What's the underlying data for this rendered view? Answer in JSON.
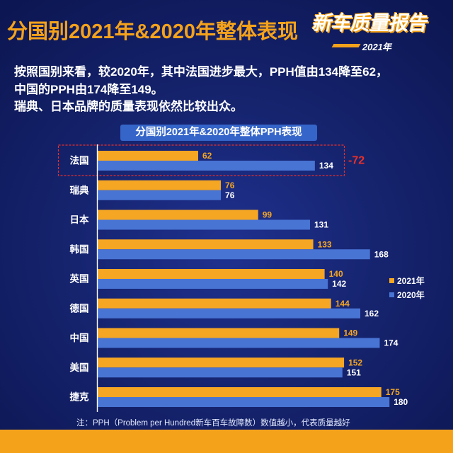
{
  "header": {
    "title": "分国别2021年&2020年整体表现"
  },
  "logo": {
    "text": "新车质量报告",
    "year": "2021年"
  },
  "intro": {
    "lines": [
      "按照国别来看，较2020年，其中法国进步最大，PPH值由134降至62，",
      "中国的PPH由174降至149。",
      "瑞典、日本品牌的质量表现依然比较出众。"
    ]
  },
  "chart_data": {
    "type": "bar",
    "orientation": "horizontal",
    "title": "分国别2021年&2020年整体PPH表现",
    "categories": [
      "法国",
      "瑞典",
      "日本",
      "韩国",
      "英国",
      "德国",
      "中国",
      "美国",
      "捷克"
    ],
    "series": [
      {
        "name": "2021年",
        "values": [
          62,
          76,
          99,
          133,
          140,
          144,
          149,
          152,
          175
        ],
        "color": "#f5a623",
        "label_color": "#f5a623"
      },
      {
        "name": "2020年",
        "values": [
          134,
          76,
          131,
          168,
          142,
          162,
          174,
          151,
          180
        ],
        "color": "#4874d4",
        "label_color": "#ffffff"
      }
    ],
    "xlim": [
      0,
      200
    ],
    "grid": false,
    "data_labels": true,
    "legend": "right",
    "highlight": {
      "category_index": 0,
      "label": "-72",
      "color": "#e8302a"
    }
  },
  "footnote": "注：PPH（Problem per Hundred新车百车故障数）数值越小，代表质量越好",
  "colors": {
    "background": "#111d62",
    "accent": "#f5a21b",
    "title_box": "#3565c9"
  }
}
